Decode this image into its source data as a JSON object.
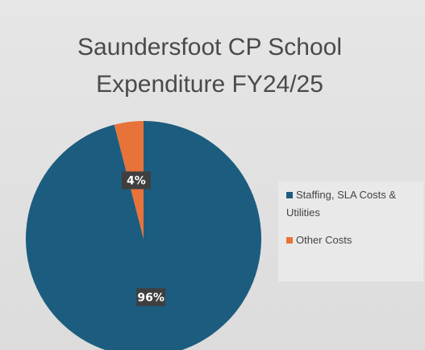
{
  "chart_data": {
    "type": "pie",
    "title": "Saundersfoot CP School Expenditure FY24/25",
    "categories": [
      "Staffing, SLA Costs & Utilities",
      "Other Costs"
    ],
    "values": [
      96,
      4
    ],
    "value_labels": [
      "96%",
      "4%"
    ],
    "colors": [
      "#1c5c7f",
      "#e8733a"
    ],
    "legend": "right"
  }
}
